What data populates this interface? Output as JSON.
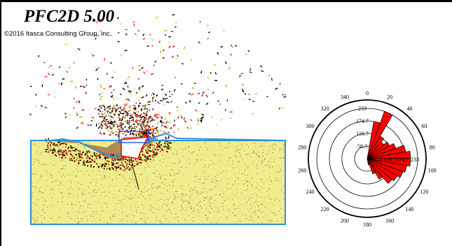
{
  "header": {
    "title": "PFC2D 5.00",
    "copyright": "©2016 Itasca Consulting Group, Inc."
  },
  "colors": {
    "soil": "#f0ee8c",
    "boundary": "#2f8fd8",
    "rose_fill": "#ff0000",
    "frame": "#000000"
  },
  "chart_data": {
    "type": "rose",
    "angle_labels": [
      "0",
      "20",
      "40",
      "60",
      "80",
      "100",
      "120",
      "140",
      "160",
      "180",
      "200",
      "220",
      "240",
      "260",
      "280",
      "300",
      "320",
      "340"
    ],
    "ring_labels": [
      "58.3",
      "116.7",
      "174.7",
      "233"
    ],
    "ring_values": [
      58.3,
      116.7,
      174.7,
      233
    ],
    "axis_labels": [
      "58.3",
      "116.7",
      "174.7",
      "233"
    ],
    "rmax": 233,
    "bins": [
      {
        "start": 10,
        "end": 20,
        "value": 175
      },
      {
        "start": 20,
        "end": 30,
        "value": 233
      },
      {
        "start": 30,
        "end": 40,
        "value": 120
      },
      {
        "start": 40,
        "end": 50,
        "value": 100
      },
      {
        "start": 50,
        "end": 60,
        "value": 120
      },
      {
        "start": 60,
        "end": 70,
        "value": 140
      },
      {
        "start": 70,
        "end": 80,
        "value": 180
      },
      {
        "start": 80,
        "end": 90,
        "value": 200
      },
      {
        "start": 90,
        "end": 100,
        "value": 200
      },
      {
        "start": 100,
        "end": 110,
        "value": 185
      },
      {
        "start": 110,
        "end": 120,
        "value": 175
      },
      {
        "start": 120,
        "end": 130,
        "value": 160
      },
      {
        "start": 130,
        "end": 140,
        "value": 150
      },
      {
        "start": 140,
        "end": 150,
        "value": 110
      },
      {
        "start": 150,
        "end": 160,
        "value": 75
      },
      {
        "start": 160,
        "end": 170,
        "value": 30
      }
    ]
  }
}
